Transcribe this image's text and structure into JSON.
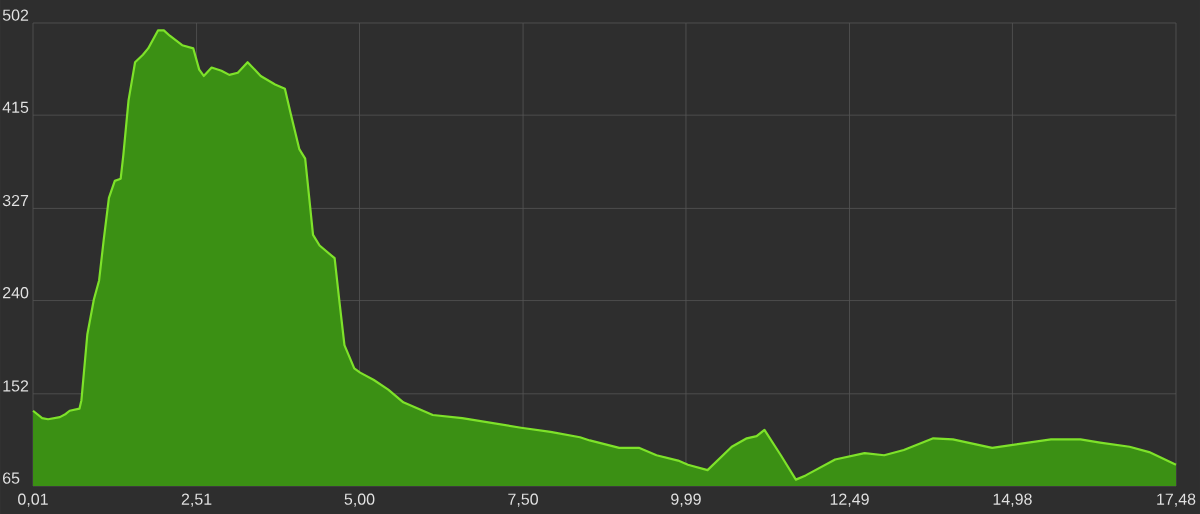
{
  "chart_data": {
    "type": "area",
    "x": [
      0.01,
      0.15,
      0.24,
      0.42,
      0.51,
      0.57,
      0.72,
      0.75,
      0.84,
      0.94,
      1.02,
      1.09,
      1.17,
      1.26,
      1.35,
      1.39,
      1.47,
      1.57,
      1.69,
      1.77,
      1.92,
      2.01,
      2.1,
      2.29,
      2.46,
      2.55,
      2.62,
      2.74,
      2.89,
      3.01,
      3.14,
      3.29,
      3.49,
      3.71,
      3.86,
      3.95,
      4.08,
      4.17,
      4.29,
      4.39,
      4.62,
      4.69,
      4.77,
      4.92,
      5.01,
      5.22,
      5.44,
      5.67,
      6.12,
      6.57,
      7.47,
      7.92,
      8.37,
      8.52,
      8.97,
      9.27,
      9.54,
      9.87,
      10.02,
      10.32,
      10.69,
      10.92,
      11.07,
      11.19,
      11.44,
      11.67,
      11.82,
      12.27,
      12.72,
      13.02,
      13.32,
      13.77,
      14.07,
      14.67,
      15.57,
      16.02,
      16.32,
      16.77,
      17.07,
      17.48
    ],
    "series": [
      {
        "color": "#7ee22a",
        "values": [
          136,
          129,
          128,
          130,
          133,
          136,
          138,
          146,
          208,
          241,
          259,
          297,
          337,
          353,
          355,
          377,
          429,
          465,
          472,
          478,
          495,
          495,
          490,
          481,
          478,
          458,
          452,
          460,
          457,
          453,
          455,
          465,
          452,
          444,
          440,
          416,
          383,
          374,
          302,
          292,
          280,
          241,
          198,
          176,
          172,
          165,
          156,
          144,
          132,
          129,
          120,
          116,
          111,
          108,
          101,
          101,
          94,
          89,
          85,
          80,
          102,
          110,
          112,
          118,
          94,
          71,
          75,
          90,
          96,
          94,
          99,
          110,
          109,
          101,
          109,
          109,
          106,
          102,
          97,
          85
        ]
      }
    ],
    "xlim": [
      0.01,
      17.48
    ],
    "ylim": [
      65,
      502
    ],
    "xticks": [
      {
        "value": 0.01,
        "label": "0,01"
      },
      {
        "value": 2.51,
        "label": "2,51"
      },
      {
        "value": 5.0,
        "label": "5,00"
      },
      {
        "value": 7.5,
        "label": "7,50"
      },
      {
        "value": 9.99,
        "label": "9,99"
      },
      {
        "value": 12.49,
        "label": "12,49"
      },
      {
        "value": 14.98,
        "label": "14,98"
      },
      {
        "value": 17.48,
        "label": "17,48"
      }
    ],
    "yticks": [
      65,
      152,
      240,
      327,
      415,
      502
    ],
    "grid": true
  }
}
